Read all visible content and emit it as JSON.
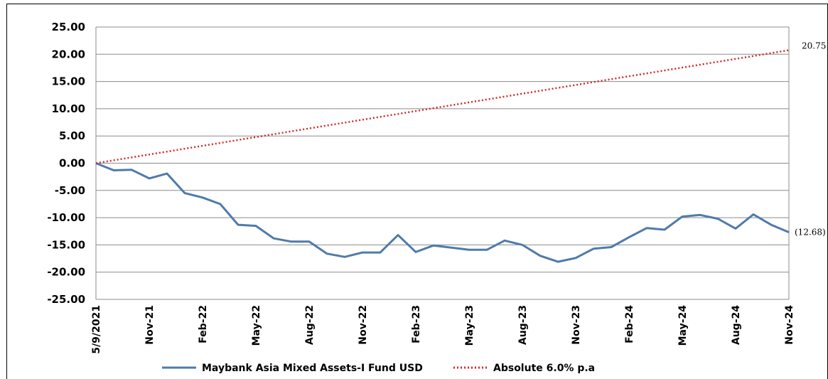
{
  "chart_data": {
    "type": "line",
    "title": "",
    "xlabel": "",
    "ylabel": "",
    "ylim": [
      -25,
      25
    ],
    "y_ticks": [
      25,
      20,
      15,
      10,
      5,
      0,
      -5,
      -10,
      -15,
      -20,
      -25
    ],
    "y_tick_labels": [
      "25.00",
      "20.00",
      "15.00",
      "10.00",
      "5.00",
      "0.00",
      "-5.00",
      "-10.00",
      "-15.00",
      "-20.00",
      "-25.00"
    ],
    "x_tick_labels": [
      "5/9/2021",
      "Nov-21",
      "Feb-22",
      "May-22",
      "Aug-22",
      "Nov-22",
      "Feb-23",
      "May-23",
      "Aug-23",
      "Nov-23",
      "Feb-24",
      "May-24",
      "Aug-24",
      "Nov-24"
    ],
    "grid": "horizontal",
    "legend_position": "bottom",
    "series": [
      {
        "name": "Maybank Asia Mixed Assets-I Fund USD",
        "color": "#4F7BAA",
        "style": "solid",
        "values": [
          0.0,
          -1.3,
          -1.2,
          -2.8,
          -1.9,
          -5.5,
          -6.3,
          -7.5,
          -11.3,
          -11.5,
          -13.8,
          -14.4,
          -14.4,
          -16.6,
          -17.2,
          -16.4,
          -16.4,
          -13.2,
          -16.3,
          -15.1,
          -15.5,
          -15.9,
          -15.9,
          -14.2,
          -15.0,
          -17.0,
          -18.1,
          -17.4,
          -15.7,
          -15.4,
          -13.6,
          -11.9,
          -12.2,
          -9.8,
          -9.5,
          -10.2,
          -12.0,
          -9.4,
          -11.3,
          -12.68
        ],
        "end_label": "(12.68)"
      },
      {
        "name": "Absolute 6.0% p.a",
        "color": "#D02B2B",
        "style": "dotted",
        "values": [
          0.0,
          20.75
        ],
        "end_label": "20.75"
      }
    ]
  }
}
